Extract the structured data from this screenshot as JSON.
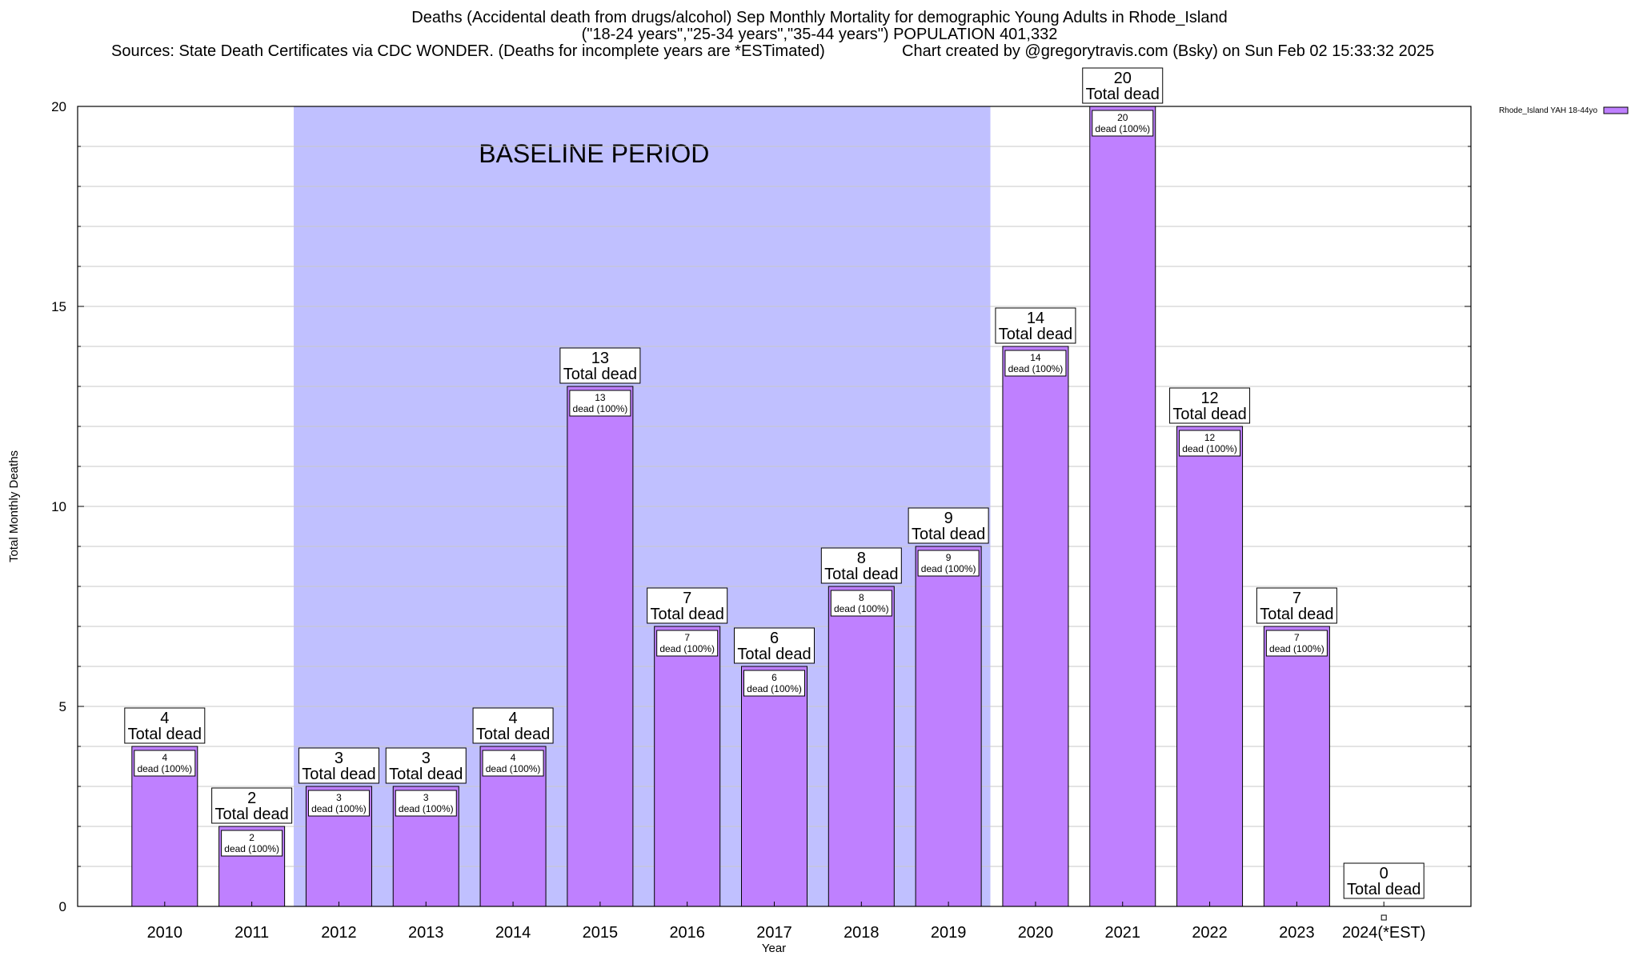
{
  "chart_data": {
    "type": "bar",
    "title_lines": [
      "Deaths (Accidental death from drugs/alcohol) Sep Monthly Mortality for demographic Young Adults in Rhode_Island",
      "(\"18-24 years\",\"25-34 years\",\"35-44 years\") POPULATION 401,332"
    ],
    "source_note": "Sources: State Death Certificates via CDC WONDER. (Deaths for incomplete years are *ESTimated)",
    "credit_note": "Chart created by @gregorytravis.com (Bsky) on Sun Feb 02 15:33:32 2025",
    "xlabel": "Year",
    "ylabel": "Total Monthly Deaths",
    "ylim": [
      0,
      20
    ],
    "yticks": [
      0,
      5,
      10,
      15,
      20
    ],
    "grid": true,
    "legend": {
      "position": "top-right",
      "label": "Rhode_Island YAH 18-44yo"
    },
    "baseline": {
      "label": "BASELINE PERIOD",
      "from": "2012",
      "to": "2019",
      "color": "#c0c0ff"
    },
    "bar_color": "#bf80ff",
    "categories": [
      "2010",
      "2011",
      "2012",
      "2013",
      "2014",
      "2015",
      "2016",
      "2017",
      "2018",
      "2019",
      "2020",
      "2021",
      "2022",
      "2023",
      "2024(*EST)"
    ],
    "series": [
      {
        "name": "Rhode_Island YAH 18-44yo",
        "values": [
          4,
          2,
          3,
          3,
          4,
          13,
          7,
          6,
          8,
          9,
          14,
          20,
          12,
          7,
          0
        ]
      }
    ],
    "total_label_suffix": "Total dead",
    "inner_label_suffix": "dead (100%)"
  }
}
